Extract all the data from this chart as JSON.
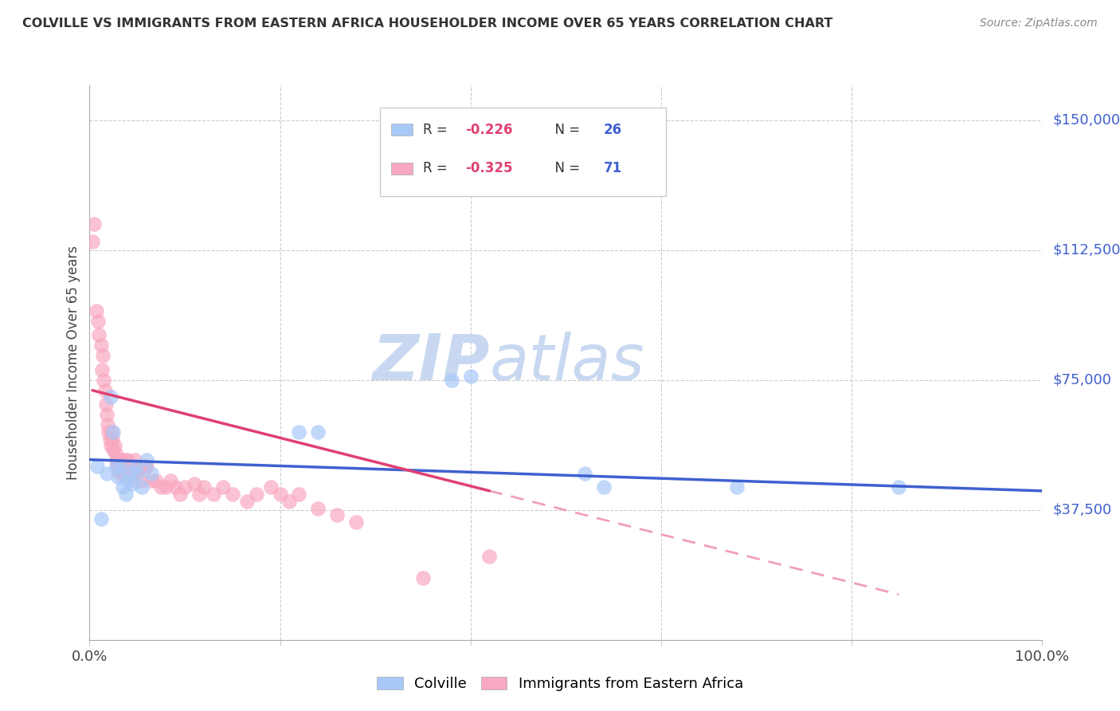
{
  "title": "COLVILLE VS IMMIGRANTS FROM EASTERN AFRICA HOUSEHOLDER INCOME OVER 65 YEARS CORRELATION CHART",
  "source": "Source: ZipAtlas.com",
  "ylabel": "Householder Income Over 65 years",
  "yticks": [
    0,
    37500,
    75000,
    112500,
    150000
  ],
  "ytick_labels": [
    "",
    "$37,500",
    "$75,000",
    "$112,500",
    "$150,000"
  ],
  "xlim": [
    0.0,
    1.0
  ],
  "ylim": [
    0,
    160000
  ],
  "colville_color": "#a8c8f8",
  "eastern_africa_color": "#f8a8c0",
  "trendline_blue": "#4060d0",
  "trendline_pink": "#e04070",
  "trendline_pink_dashed": "#f0a0b8",
  "watermark_color": "#c8d8f0",
  "background_color": "#ffffff",
  "colville_x": [
    0.008,
    0.012,
    0.018,
    0.022,
    0.025,
    0.028,
    0.03,
    0.032,
    0.035,
    0.038,
    0.04,
    0.042,
    0.045,
    0.048,
    0.05,
    0.055,
    0.06,
    0.065,
    0.22,
    0.24,
    0.38,
    0.4,
    0.52,
    0.54,
    0.68,
    0.85
  ],
  "colville_y": [
    50000,
    35000,
    48000,
    70000,
    60000,
    50000,
    47000,
    50000,
    44000,
    42000,
    46000,
    48000,
    45000,
    50000,
    48000,
    44000,
    52000,
    48000,
    60000,
    60000,
    75000,
    76000,
    48000,
    44000,
    44000,
    44000
  ],
  "eastern_africa_x": [
    0.003,
    0.005,
    0.007,
    0.009,
    0.01,
    0.012,
    0.013,
    0.014,
    0.015,
    0.016,
    0.017,
    0.018,
    0.019,
    0.02,
    0.021,
    0.022,
    0.023,
    0.024,
    0.025,
    0.026,
    0.027,
    0.028,
    0.029,
    0.03,
    0.031,
    0.032,
    0.033,
    0.034,
    0.035,
    0.036,
    0.037,
    0.038,
    0.039,
    0.04,
    0.041,
    0.042,
    0.043,
    0.044,
    0.045,
    0.046,
    0.047,
    0.05,
    0.052,
    0.055,
    0.058,
    0.06,
    0.065,
    0.07,
    0.075,
    0.08,
    0.085,
    0.09,
    0.095,
    0.1,
    0.11,
    0.115,
    0.12,
    0.13,
    0.14,
    0.15,
    0.165,
    0.175,
    0.19,
    0.2,
    0.21,
    0.22,
    0.24,
    0.26,
    0.28,
    0.35,
    0.42
  ],
  "eastern_africa_y": [
    115000,
    120000,
    95000,
    92000,
    88000,
    85000,
    78000,
    82000,
    75000,
    72000,
    68000,
    65000,
    62000,
    60000,
    58000,
    56000,
    60000,
    58000,
    55000,
    56000,
    54000,
    52000,
    50000,
    52000,
    50000,
    48000,
    52000,
    50000,
    48000,
    52000,
    50000,
    48000,
    50000,
    52000,
    50000,
    48000,
    46000,
    50000,
    48000,
    50000,
    52000,
    48000,
    50000,
    46000,
    50000,
    50000,
    46000,
    46000,
    44000,
    44000,
    46000,
    44000,
    42000,
    44000,
    45000,
    42000,
    44000,
    42000,
    44000,
    42000,
    40000,
    42000,
    44000,
    42000,
    40000,
    42000,
    38000,
    36000,
    34000,
    18000,
    24000
  ]
}
